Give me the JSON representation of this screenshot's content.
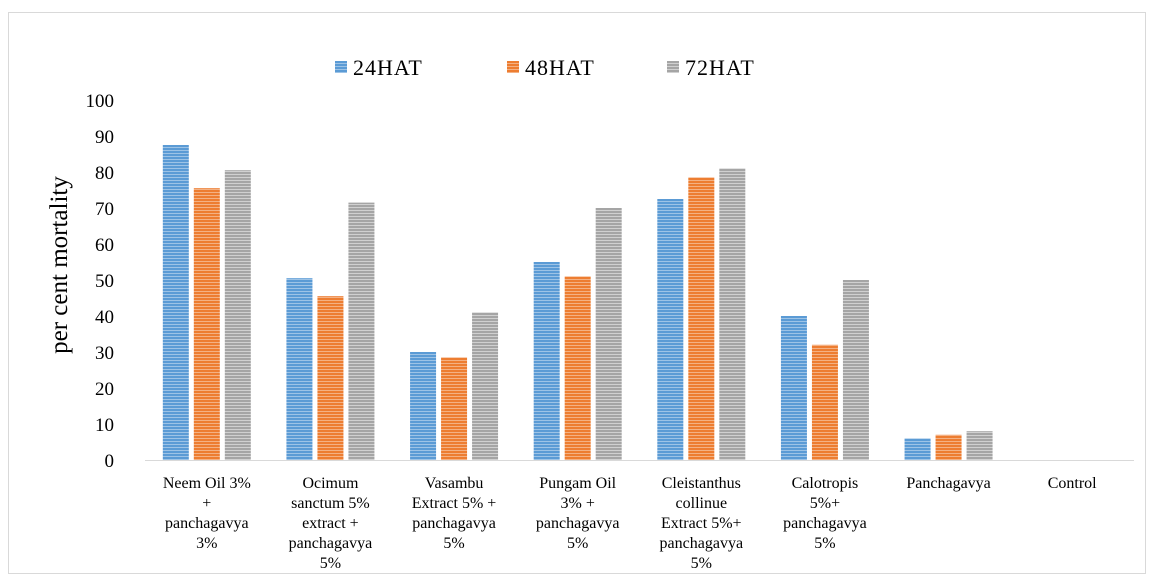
{
  "chart_data": {
    "type": "bar",
    "title": "",
    "xlabel": "",
    "ylabel": "per cent mortality",
    "ylim": [
      0,
      100
    ],
    "yticks": [
      0,
      10,
      20,
      30,
      40,
      50,
      60,
      70,
      80,
      90,
      100
    ],
    "grid": false,
    "legend_position": "top-center",
    "categories": [
      [
        "Neem Oil 3%",
        "+",
        "panchagavya",
        "3%"
      ],
      [
        "Ocimum",
        "sanctum 5%",
        "extract +",
        "panchagavya",
        "5%"
      ],
      [
        "Vasambu",
        "Extract 5% +",
        "panchagavya",
        "5%"
      ],
      [
        "Pungam Oil",
        "3% +",
        "panchagavya",
        "5%"
      ],
      [
        "Cleistanthus",
        "collinue",
        "Extract 5%+",
        "panchagavya",
        "5%"
      ],
      [
        "Calotropis",
        "5%+",
        "panchagavya",
        "5%"
      ],
      [
        "Panchagavya"
      ],
      [
        "Control"
      ]
    ],
    "series": [
      {
        "name": "24HAT",
        "color": "#5b9bd5",
        "values": [
          87.5,
          50.5,
          30,
          55,
          72.5,
          40,
          6,
          0
        ]
      },
      {
        "name": "48HAT",
        "color": "#ed7d31",
        "values": [
          75.5,
          45.5,
          28.5,
          51,
          78.5,
          32,
          7,
          0
        ]
      },
      {
        "name": "72HAT",
        "color": "#a5a5a5",
        "values": [
          80.5,
          71.5,
          41,
          70,
          81,
          50,
          8,
          0
        ]
      }
    ]
  }
}
